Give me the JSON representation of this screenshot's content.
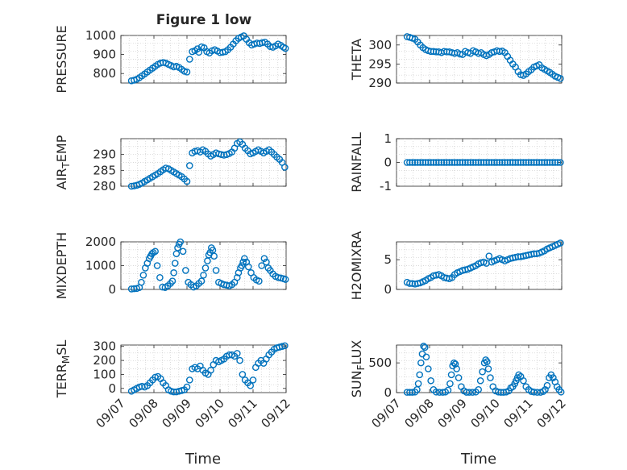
{
  "figure": {
    "title": "Figure 1 low",
    "xlabel": "Time"
  },
  "colors": {
    "marker": "#0072bd",
    "axes": "#262626",
    "grid": "#cccccc",
    "background": "#ffffff"
  },
  "chart_data": [
    {
      "type": "scatter",
      "ylabel": "PRESSURE",
      "title": "Figure 1 low",
      "xlim": [
        0,
        5
      ],
      "ylim": [
        750,
        1000
      ],
      "yticks": [
        800,
        900,
        1000
      ],
      "grid": true,
      "x": [
        0.32,
        0.4,
        0.48,
        0.56,
        0.64,
        0.72,
        0.8,
        0.88,
        0.96,
        1.04,
        1.12,
        1.2,
        1.28,
        1.36,
        1.44,
        1.52,
        1.6,
        1.68,
        1.76,
        1.84,
        1.92,
        2.0,
        2.08,
        2.16,
        2.24,
        2.32,
        2.36,
        2.44,
        2.52,
        2.6,
        2.68,
        2.76,
        2.84,
        2.92,
        3.0,
        3.08,
        3.16,
        3.24,
        3.32,
        3.4,
        3.48,
        3.56,
        3.64,
        3.72,
        3.8,
        3.88,
        3.96,
        4.04,
        4.12,
        4.2,
        4.28,
        4.36,
        4.44,
        4.52,
        4.6,
        4.68,
        4.76,
        4.84,
        4.92,
        4.98
      ],
      "y": [
        762,
        765,
        770,
        778,
        788,
        798,
        808,
        818,
        828,
        838,
        848,
        855,
        858,
        855,
        848,
        842,
        835,
        838,
        832,
        822,
        812,
        808,
        875,
        915,
        920,
        930,
        912,
        940,
        935,
        915,
        908,
        920,
        925,
        918,
        910,
        912,
        915,
        925,
        938,
        955,
        972,
        985,
        992,
        998,
        980,
        962,
        950,
        955,
        960,
        958,
        962,
        965,
        955,
        942,
        938,
        945,
        955,
        948,
        938,
        932
      ]
    },
    {
      "type": "scatter",
      "ylabel": "THETA",
      "xlim": [
        0,
        5
      ],
      "ylim": [
        290,
        302.5
      ],
      "yticks": [
        290,
        295,
        300
      ],
      "grid": true,
      "x": [
        0.32,
        0.4,
        0.48,
        0.56,
        0.64,
        0.72,
        0.8,
        0.88,
        0.96,
        1.04,
        1.12,
        1.2,
        1.28,
        1.36,
        1.44,
        1.52,
        1.6,
        1.68,
        1.76,
        1.84,
        1.92,
        2.0,
        2.08,
        2.16,
        2.24,
        2.32,
        2.4,
        2.48,
        2.56,
        2.64,
        2.72,
        2.8,
        2.88,
        2.96,
        3.04,
        3.12,
        3.2,
        3.28,
        3.36,
        3.44,
        3.52,
        3.6,
        3.68,
        3.76,
        3.84,
        3.92,
        4.0,
        4.08,
        4.16,
        4.24,
        4.32,
        4.4,
        4.48,
        4.56,
        4.64,
        4.72,
        4.8,
        4.88,
        4.96
      ],
      "y": [
        302.2,
        302.0,
        301.8,
        301.5,
        300.8,
        300.0,
        299.3,
        298.8,
        298.5,
        298.3,
        298.3,
        298.2,
        298.2,
        298.0,
        298.3,
        298.2,
        298.2,
        298.0,
        297.8,
        298.0,
        297.6,
        297.5,
        298.3,
        298.0,
        297.8,
        298.5,
        298.2,
        297.8,
        298.0,
        297.5,
        297.2,
        297.5,
        298.0,
        298.2,
        298.5,
        298.3,
        298.4,
        298.0,
        297.0,
        296.0,
        295.0,
        294.2,
        293.0,
        292.2,
        292.0,
        292.4,
        293.0,
        293.5,
        294.2,
        294.5,
        294.8,
        294.0,
        293.6,
        293.2,
        292.8,
        292.3,
        291.8,
        291.5,
        291.2
      ]
    },
    {
      "type": "scatter",
      "ylabel": "AIR_TEMP",
      "xlim": [
        0,
        5
      ],
      "ylim": [
        280,
        295
      ],
      "yticks": [
        280,
        285,
        290
      ],
      "grid": true,
      "x": [
        0.32,
        0.4,
        0.48,
        0.56,
        0.64,
        0.72,
        0.8,
        0.88,
        0.96,
        1.04,
        1.12,
        1.2,
        1.28,
        1.36,
        1.44,
        1.52,
        1.6,
        1.68,
        1.76,
        1.84,
        1.92,
        2.0,
        2.08,
        2.16,
        2.24,
        2.32,
        2.4,
        2.48,
        2.56,
        2.64,
        2.72,
        2.8,
        2.88,
        2.96,
        3.04,
        3.12,
        3.2,
        3.28,
        3.36,
        3.44,
        3.52,
        3.6,
        3.68,
        3.76,
        3.84,
        3.92,
        4.0,
        4.08,
        4.16,
        4.24,
        4.32,
        4.4,
        4.48,
        4.56,
        4.64,
        4.72,
        4.8,
        4.88,
        4.96
      ],
      "y": [
        280.0,
        280.1,
        280.3,
        280.6,
        281.0,
        281.5,
        282.0,
        282.5,
        283.0,
        283.5,
        284.0,
        284.6,
        285.2,
        285.7,
        285.5,
        285.0,
        284.5,
        284.0,
        283.5,
        283.0,
        282.3,
        281.5,
        286.5,
        290.5,
        291.0,
        291.2,
        290.8,
        291.5,
        291.0,
        290.2,
        289.5,
        290.0,
        290.5,
        290.2,
        290.0,
        289.8,
        290.0,
        290.3,
        290.8,
        292.0,
        293.5,
        294.0,
        293.2,
        292.0,
        291.2,
        290.2,
        290.5,
        291.0,
        291.5,
        291.0,
        290.5,
        291.0,
        291.5,
        290.8,
        290.0,
        289.2,
        288.5,
        287.5,
        286.0
      ]
    },
    {
      "type": "scatter",
      "ylabel": "RAINFALL",
      "xlim": [
        0,
        5
      ],
      "ylim": [
        -1,
        1
      ],
      "yticks": [
        -1,
        0,
        1
      ],
      "grid": true,
      "x": [
        0.32,
        0.4,
        0.48,
        0.56,
        0.64,
        0.72,
        0.8,
        0.88,
        0.96,
        1.04,
        1.12,
        1.2,
        1.28,
        1.36,
        1.44,
        1.52,
        1.6,
        1.68,
        1.76,
        1.84,
        1.92,
        2.0,
        2.08,
        2.16,
        2.24,
        2.32,
        2.4,
        2.48,
        2.56,
        2.64,
        2.72,
        2.8,
        2.88,
        2.96,
        3.04,
        3.12,
        3.2,
        3.28,
        3.36,
        3.44,
        3.52,
        3.6,
        3.68,
        3.76,
        3.84,
        3.92,
        4.0,
        4.08,
        4.16,
        4.24,
        4.32,
        4.4,
        4.48,
        4.56,
        4.64,
        4.72,
        4.8,
        4.88,
        4.96
      ],
      "y": [
        0,
        0,
        0,
        0,
        0,
        0,
        0,
        0,
        0,
        0,
        0,
        0,
        0,
        0,
        0,
        0,
        0,
        0,
        0,
        0,
        0,
        0,
        0,
        0,
        0,
        0,
        0,
        0,
        0,
        0,
        0,
        0,
        0,
        0,
        0,
        0,
        0,
        0,
        0,
        0,
        0,
        0,
        0,
        0,
        0,
        0,
        0,
        0,
        0,
        0,
        0,
        0,
        0,
        0,
        0,
        0,
        0,
        0,
        0
      ]
    },
    {
      "type": "scatter",
      "ylabel": "MIXDEPTH",
      "xlim": [
        0,
        5
      ],
      "ylim": [
        0,
        2000
      ],
      "yticks": [
        0,
        1000,
        2000
      ],
      "grid": true,
      "x": [
        0.32,
        0.4,
        0.48,
        0.56,
        0.62,
        0.68,
        0.74,
        0.8,
        0.86,
        0.9,
        0.94,
        0.98,
        1.04,
        1.1,
        1.18,
        1.26,
        1.34,
        1.42,
        1.5,
        1.56,
        1.6,
        1.64,
        1.68,
        1.72,
        1.76,
        1.8,
        1.88,
        1.96,
        2.04,
        2.12,
        2.2,
        2.28,
        2.36,
        2.44,
        2.5,
        2.56,
        2.62,
        2.66,
        2.7,
        2.74,
        2.78,
        2.82,
        2.88,
        2.96,
        3.04,
        3.12,
        3.2,
        3.28,
        3.36,
        3.44,
        3.52,
        3.56,
        3.62,
        3.66,
        3.7,
        3.74,
        3.8,
        3.86,
        3.94,
        4.02,
        4.1,
        4.18,
        4.26,
        4.34,
        4.4,
        4.46,
        4.52,
        4.6,
        4.68,
        4.76,
        4.84,
        4.92,
        4.98
      ],
      "y": [
        20,
        30,
        40,
        80,
        300,
        600,
        900,
        1100,
        1300,
        1400,
        1500,
        1550,
        1600,
        1000,
        500,
        100,
        80,
        150,
        250,
        350,
        700,
        1100,
        1500,
        1750,
        1900,
        2000,
        1600,
        800,
        300,
        200,
        100,
        150,
        250,
        350,
        600,
        900,
        1200,
        1450,
        1550,
        1750,
        1650,
        1400,
        800,
        300,
        250,
        200,
        180,
        150,
        200,
        300,
        500,
        700,
        900,
        1000,
        1150,
        1300,
        1150,
        950,
        700,
        500,
        400,
        350,
        1000,
        1300,
        1150,
        900,
        800,
        650,
        550,
        500,
        480,
        450,
        420
      ]
    },
    {
      "type": "scatter",
      "ylabel": "H2OMIXRA",
      "xlim": [
        0,
        5
      ],
      "ylim": [
        0,
        8
      ],
      "yticks": [
        0,
        5
      ],
      "grid": true,
      "x": [
        0.32,
        0.4,
        0.48,
        0.56,
        0.64,
        0.72,
        0.8,
        0.88,
        0.96,
        1.04,
        1.12,
        1.2,
        1.28,
        1.36,
        1.44,
        1.52,
        1.6,
        1.68,
        1.76,
        1.84,
        1.92,
        2.0,
        2.08,
        2.16,
        2.24,
        2.32,
        2.4,
        2.48,
        2.56,
        2.64,
        2.72,
        2.8,
        2.88,
        2.96,
        3.04,
        3.12,
        3.2,
        3.28,
        3.36,
        3.44,
        3.52,
        3.6,
        3.68,
        3.76,
        3.84,
        3.92,
        4.0,
        4.08,
        4.16,
        4.24,
        4.32,
        4.4,
        4.48,
        4.56,
        4.64,
        4.72,
        4.8,
        4.88,
        4.96
      ],
      "y": [
        1.2,
        1.0,
        1.0,
        0.9,
        1.0,
        1.1,
        1.3,
        1.5,
        1.8,
        2.0,
        2.3,
        2.4,
        2.5,
        2.3,
        2.0,
        1.9,
        1.8,
        2.0,
        2.5,
        2.8,
        3.0,
        3.2,
        3.3,
        3.4,
        3.6,
        3.8,
        4.0,
        4.3,
        4.5,
        4.6,
        4.4,
        5.6,
        4.6,
        4.8,
        5.0,
        5.2,
        5.0,
        4.8,
        5.0,
        5.2,
        5.3,
        5.4,
        5.5,
        5.5,
        5.6,
        5.7,
        5.8,
        5.9,
        6.0,
        6.0,
        6.1,
        6.3,
        6.5,
        6.8,
        7.0,
        7.2,
        7.4,
        7.6,
        7.8
      ]
    },
    {
      "type": "scatter",
      "ylabel": "TERR_MSL",
      "xlim": [
        0,
        5
      ],
      "ylim": [
        -30,
        310
      ],
      "yticks": [
        0,
        100,
        200,
        300
      ],
      "grid": true,
      "x": [
        0.32,
        0.4,
        0.48,
        0.56,
        0.64,
        0.72,
        0.8,
        0.88,
        0.96,
        1.04,
        1.12,
        1.2,
        1.28,
        1.36,
        1.44,
        1.52,
        1.6,
        1.68,
        1.76,
        1.84,
        1.92,
        2.0,
        2.08,
        2.16,
        2.24,
        2.32,
        2.4,
        2.48,
        2.56,
        2.64,
        2.72,
        2.8,
        2.88,
        2.96,
        3.04,
        3.12,
        3.2,
        3.28,
        3.36,
        3.44,
        3.52,
        3.6,
        3.68,
        3.76,
        3.84,
        3.92,
        4.0,
        4.08,
        4.16,
        4.24,
        4.32,
        4.4,
        4.48,
        4.56,
        4.64,
        4.72,
        4.8,
        4.88,
        4.96
      ],
      "y": [
        -20,
        -10,
        0,
        10,
        15,
        10,
        20,
        40,
        60,
        80,
        85,
        70,
        40,
        20,
        -10,
        -20,
        -25,
        -25,
        -20,
        -15,
        -10,
        10,
        60,
        140,
        150,
        140,
        160,
        130,
        110,
        100,
        130,
        170,
        200,
        190,
        200,
        210,
        230,
        240,
        240,
        230,
        250,
        200,
        100,
        60,
        40,
        20,
        60,
        150,
        180,
        200,
        180,
        210,
        240,
        260,
        280,
        290,
        295,
        300,
        305
      ]
    },
    {
      "type": "scatter",
      "ylabel": "SUN_FLUX",
      "xlim": [
        0,
        5
      ],
      "ylim": [
        0,
        800
      ],
      "yticks": [
        0,
        500
      ],
      "grid": true,
      "x": [
        0.32,
        0.4,
        0.48,
        0.56,
        0.62,
        0.66,
        0.7,
        0.74,
        0.78,
        0.82,
        0.86,
        0.9,
        0.96,
        1.04,
        1.12,
        1.2,
        1.3,
        1.4,
        1.48,
        1.56,
        1.62,
        1.66,
        1.7,
        1.74,
        1.78,
        1.82,
        1.88,
        1.96,
        2.04,
        2.12,
        2.2,
        2.3,
        2.4,
        2.48,
        2.54,
        2.6,
        2.66,
        2.7,
        2.74,
        2.78,
        2.84,
        2.92,
        3.0,
        3.08,
        3.16,
        3.24,
        3.32,
        3.4,
        3.46,
        3.52,
        3.58,
        3.62,
        3.66,
        3.7,
        3.76,
        3.84,
        3.92,
        4.0,
        4.08,
        4.16,
        4.26,
        4.36,
        4.44,
        4.5,
        4.56,
        4.62,
        4.68,
        4.74,
        4.8,
        4.86,
        4.92,
        4.98
      ],
      "y": [
        5,
        5,
        5,
        10,
        50,
        150,
        300,
        500,
        650,
        780,
        760,
        600,
        400,
        200,
        50,
        10,
        5,
        5,
        10,
        40,
        150,
        300,
        450,
        500,
        480,
        400,
        250,
        100,
        30,
        5,
        5,
        5,
        10,
        50,
        200,
        350,
        500,
        550,
        520,
        400,
        250,
        100,
        30,
        10,
        5,
        5,
        10,
        30,
        80,
        100,
        150,
        200,
        250,
        300,
        270,
        200,
        100,
        50,
        20,
        10,
        5,
        5,
        20,
        50,
        120,
        250,
        300,
        250,
        180,
        100,
        50,
        10
      ]
    }
  ],
  "x_tick_labels": [
    "09/07",
    "09/08",
    "09/09",
    "09/10",
    "09/11",
    "09/12"
  ]
}
